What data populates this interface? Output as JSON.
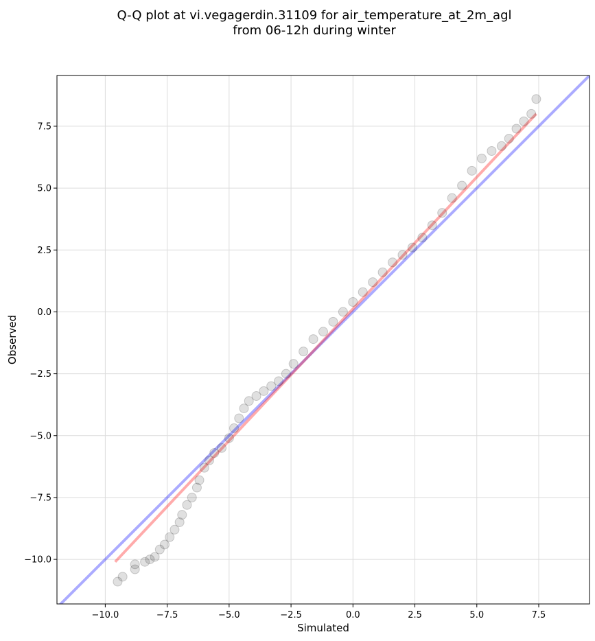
{
  "chart_data": {
    "type": "scatter",
    "title_line1": "Q-Q plot at vi.vegagerdin.31109 for air_temperature_at_2m_agl",
    "title_line2": "from 06-12h during winter",
    "xlabel": "Simulated",
    "ylabel": "Observed",
    "xlim": [
      -11.95,
      9.55
    ],
    "ylim": [
      -11.8,
      9.55
    ],
    "xticks": [
      -10.0,
      -7.5,
      -5.0,
      -2.5,
      0.0,
      2.5,
      5.0,
      7.5
    ],
    "xtick_labels": [
      "−10.0",
      "−7.5",
      "−5.0",
      "−2.5",
      "0.0",
      "2.5",
      "5.0",
      "7.5"
    ],
    "yticks": [
      -10.0,
      -7.5,
      -5.0,
      -2.5,
      0.0,
      2.5,
      5.0,
      7.5
    ],
    "ytick_labels": [
      "−10.0",
      "−7.5",
      "−5.0",
      "−2.5",
      "0.0",
      "2.5",
      "5.0",
      "7.5"
    ],
    "grid": true,
    "point_color": "#000000",
    "fit_line_color": "#ff0000",
    "identity_line_color": "#0000ff",
    "identity_line": {
      "x": [
        -11.95,
        9.55
      ],
      "y": [
        -11.95,
        9.55
      ]
    },
    "fit_line": {
      "x": [
        -9.6,
        7.4
      ],
      "y": [
        -10.1,
        8.0
      ]
    },
    "quantiles": {
      "x": [
        -9.5,
        -9.3,
        -8.8,
        -8.8,
        -8.4,
        -8.2,
        -8.0,
        -7.8,
        -7.6,
        -7.4,
        -7.2,
        -7.0,
        -6.9,
        -6.7,
        -6.5,
        -6.3,
        -6.2,
        -6.0,
        -5.8,
        -5.6,
        -5.3,
        -5.0,
        -4.8,
        -4.6,
        -4.4,
        -4.2,
        -3.9,
        -3.6,
        -3.3,
        -3.0,
        -2.7,
        -2.4,
        -2.0,
        -1.6,
        -1.2,
        -0.8,
        -0.4,
        0.0,
        0.4,
        0.8,
        1.2,
        1.6,
        2.0,
        2.4,
        2.8,
        3.2,
        3.6,
        4.0,
        4.4,
        4.8,
        5.2,
        5.6,
        6.0,
        6.3,
        6.6,
        6.9,
        7.2,
        7.4
      ],
      "y": [
        -10.9,
        -10.7,
        -10.4,
        -10.2,
        -10.1,
        -10.0,
        -9.9,
        -9.6,
        -9.4,
        -9.1,
        -8.8,
        -8.5,
        -8.2,
        -7.8,
        -7.5,
        -7.1,
        -6.8,
        -6.3,
        -6.0,
        -5.7,
        -5.5,
        -5.1,
        -4.7,
        -4.3,
        -3.9,
        -3.6,
        -3.4,
        -3.2,
        -3.0,
        -2.8,
        -2.5,
        -2.1,
        -1.6,
        -1.1,
        -0.8,
        -0.4,
        0.0,
        0.4,
        0.8,
        1.2,
        1.6,
        2.0,
        2.3,
        2.6,
        3.0,
        3.5,
        4.0,
        4.6,
        5.1,
        5.7,
        6.2,
        6.5,
        6.7,
        7.0,
        7.4,
        7.7,
        8.0,
        8.6
      ]
    }
  }
}
